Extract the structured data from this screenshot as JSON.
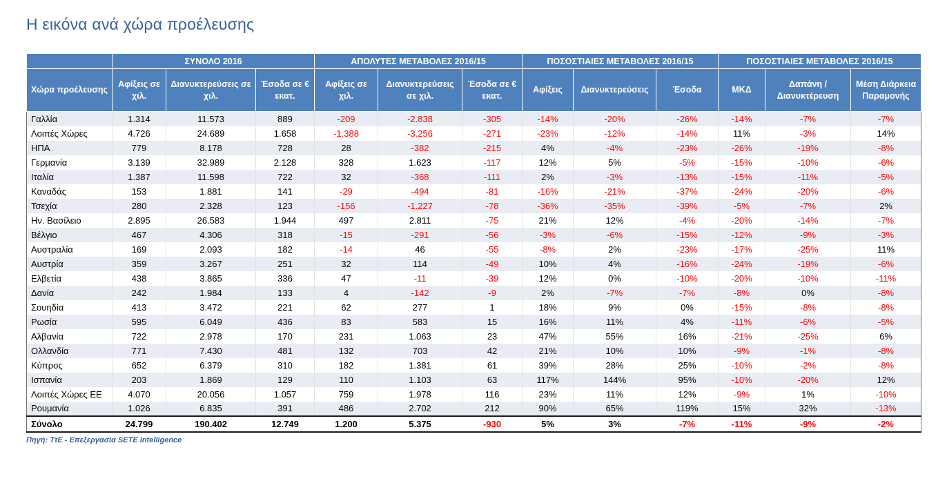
{
  "page": {
    "title": "Η εικόνα ανά χώρα προέλευσης",
    "source_note": "Πηγή: ΤτΕ - Επεξεργασία SETE Intelligence"
  },
  "colors": {
    "header_bg": "#4F81BD",
    "title_text": "#36609A",
    "negative_value": "#FF0000",
    "row_alt_bg": "#E9EDF3"
  },
  "table": {
    "col_groups": [
      {
        "label": "",
        "span": 1
      },
      {
        "label": "ΣΥΝΟΛΟ 2016",
        "span": 3
      },
      {
        "label": "ΑΠΟΛΥΤΕΣ ΜΕΤΑΒΟΛΕΣ 2016/15",
        "span": 3
      },
      {
        "label": "ΠΟΣΟΣΤΙΑΙΕΣ ΜΕΤΑΒΟΛΕΣ 2016/15",
        "span": 3
      },
      {
        "label": "ΠΟΣΟΣΤΙΑΙΕΣ ΜΕΤΑΒΟΛΕΣ 2016/15",
        "span": 3
      }
    ],
    "columns": [
      "Χώρα προέλευσης",
      "Αφίξεις σε χιλ.",
      "Διανυκτερεύσεις σε χιλ.",
      "Έσοδα σε € εκατ.",
      "Αφίξεις σε χιλ.",
      "Διανυκτερεύσεις σε χιλ.",
      "Έσοδα σε € εκατ.",
      "Αφίξεις",
      "Διανυκτερεύσεις",
      "Έσοδα",
      "ΜΚΔ",
      "Δαπάνη / Διανυκτέρευση",
      "Μέση Διάρκεια Παραμονής"
    ],
    "rows": [
      [
        "Γαλλία",
        "1.314",
        "11.573",
        "889",
        "-209",
        "-2.838",
        "-305",
        "-14%",
        "-20%",
        "-26%",
        "-14%",
        "-7%",
        "-7%"
      ],
      [
        "Λοιπές Χώρες",
        "4.726",
        "24.689",
        "1.658",
        "-1.388",
        "-3.256",
        "-271",
        "-23%",
        "-12%",
        "-14%",
        "11%",
        "-3%",
        "14%"
      ],
      [
        "ΗΠΑ",
        "779",
        "8.178",
        "728",
        "28",
        "-382",
        "-215",
        "4%",
        "-4%",
        "-23%",
        "-26%",
        "-19%",
        "-8%"
      ],
      [
        "Γερμανία",
        "3.139",
        "32.989",
        "2.128",
        "328",
        "1.623",
        "-117",
        "12%",
        "5%",
        "-5%",
        "-15%",
        "-10%",
        "-6%"
      ],
      [
        "Ιταλία",
        "1.387",
        "11.598",
        "722",
        "32",
        "-368",
        "-111",
        "2%",
        "-3%",
        "-13%",
        "-15%",
        "-11%",
        "-5%"
      ],
      [
        "Καναδάς",
        "153",
        "1.881",
        "141",
        "-29",
        "-494",
        "-81",
        "-16%",
        "-21%",
        "-37%",
        "-24%",
        "-20%",
        "-6%"
      ],
      [
        "Τσεχία",
        "280",
        "2.328",
        "123",
        "-156",
        "-1.227",
        "-78",
        "-36%",
        "-35%",
        "-39%",
        "-5%",
        "-7%",
        "2%"
      ],
      [
        "Ην. Βασίλειο",
        "2.895",
        "26.583",
        "1.944",
        "497",
        "2.811",
        "-75",
        "21%",
        "12%",
        "-4%",
        "-20%",
        "-14%",
        "-7%"
      ],
      [
        "Βέλγιο",
        "467",
        "4.306",
        "318",
        "-15",
        "-291",
        "-56",
        "-3%",
        "-6%",
        "-15%",
        "-12%",
        "-9%",
        "-3%"
      ],
      [
        "Αυστραλία",
        "169",
        "2.093",
        "182",
        "-14",
        "46",
        "-55",
        "-8%",
        "2%",
        "-23%",
        "-17%",
        "-25%",
        "11%"
      ],
      [
        "Αυστρία",
        "359",
        "3.267",
        "251",
        "32",
        "114",
        "-49",
        "10%",
        "4%",
        "-16%",
        "-24%",
        "-19%",
        "-6%"
      ],
      [
        "Ελβετία",
        "438",
        "3.865",
        "336",
        "47",
        "-11",
        "-39",
        "12%",
        "0%",
        "-10%",
        "-20%",
        "-10%",
        "-11%"
      ],
      [
        "Δανία",
        "242",
        "1.984",
        "133",
        "4",
        "-142",
        "-9",
        "2%",
        "-7%",
        "-7%",
        "-8%",
        "0%",
        "-8%"
      ],
      [
        "Σουηδία",
        "413",
        "3.472",
        "221",
        "62",
        "277",
        "1",
        "18%",
        "9%",
        "0%",
        "-15%",
        "-8%",
        "-8%"
      ],
      [
        "Ρωσία",
        "595",
        "6.049",
        "436",
        "83",
        "583",
        "15",
        "16%",
        "11%",
        "4%",
        "-11%",
        "-6%",
        "-5%"
      ],
      [
        "Αλβανία",
        "722",
        "2.978",
        "170",
        "231",
        "1.063",
        "23",
        "47%",
        "55%",
        "16%",
        "-21%",
        "-25%",
        "6%"
      ],
      [
        "Ολλανδία",
        "771",
        "7.430",
        "481",
        "132",
        "703",
        "42",
        "21%",
        "10%",
        "10%",
        "-9%",
        "-1%",
        "-8%"
      ],
      [
        "Κύπρος",
        "652",
        "6.379",
        "310",
        "182",
        "1.381",
        "61",
        "39%",
        "28%",
        "25%",
        "-10%",
        "-2%",
        "-8%"
      ],
      [
        "Ισπανία",
        "203",
        "1.869",
        "129",
        "110",
        "1.103",
        "63",
        "117%",
        "144%",
        "95%",
        "-10%",
        "-20%",
        "12%"
      ],
      [
        "Λοιπές Χώρες ΕΕ",
        "4.070",
        "20.056",
        "1.057",
        "759",
        "1.978",
        "116",
        "23%",
        "11%",
        "12%",
        "-9%",
        "1%",
        "-10%"
      ],
      [
        "Ρουμανία",
        "1.026",
        "6.835",
        "391",
        "486",
        "2.702",
        "212",
        "90%",
        "65%",
        "119%",
        "15%",
        "32%",
        "-13%"
      ]
    ],
    "total_row": [
      "Σύνολο",
      "24.799",
      "190.402",
      "12.749",
      "1.200",
      "5.375",
      "-930",
      "5%",
      "3%",
      "-7%",
      "-11%",
      "-9%",
      "-2%"
    ]
  }
}
